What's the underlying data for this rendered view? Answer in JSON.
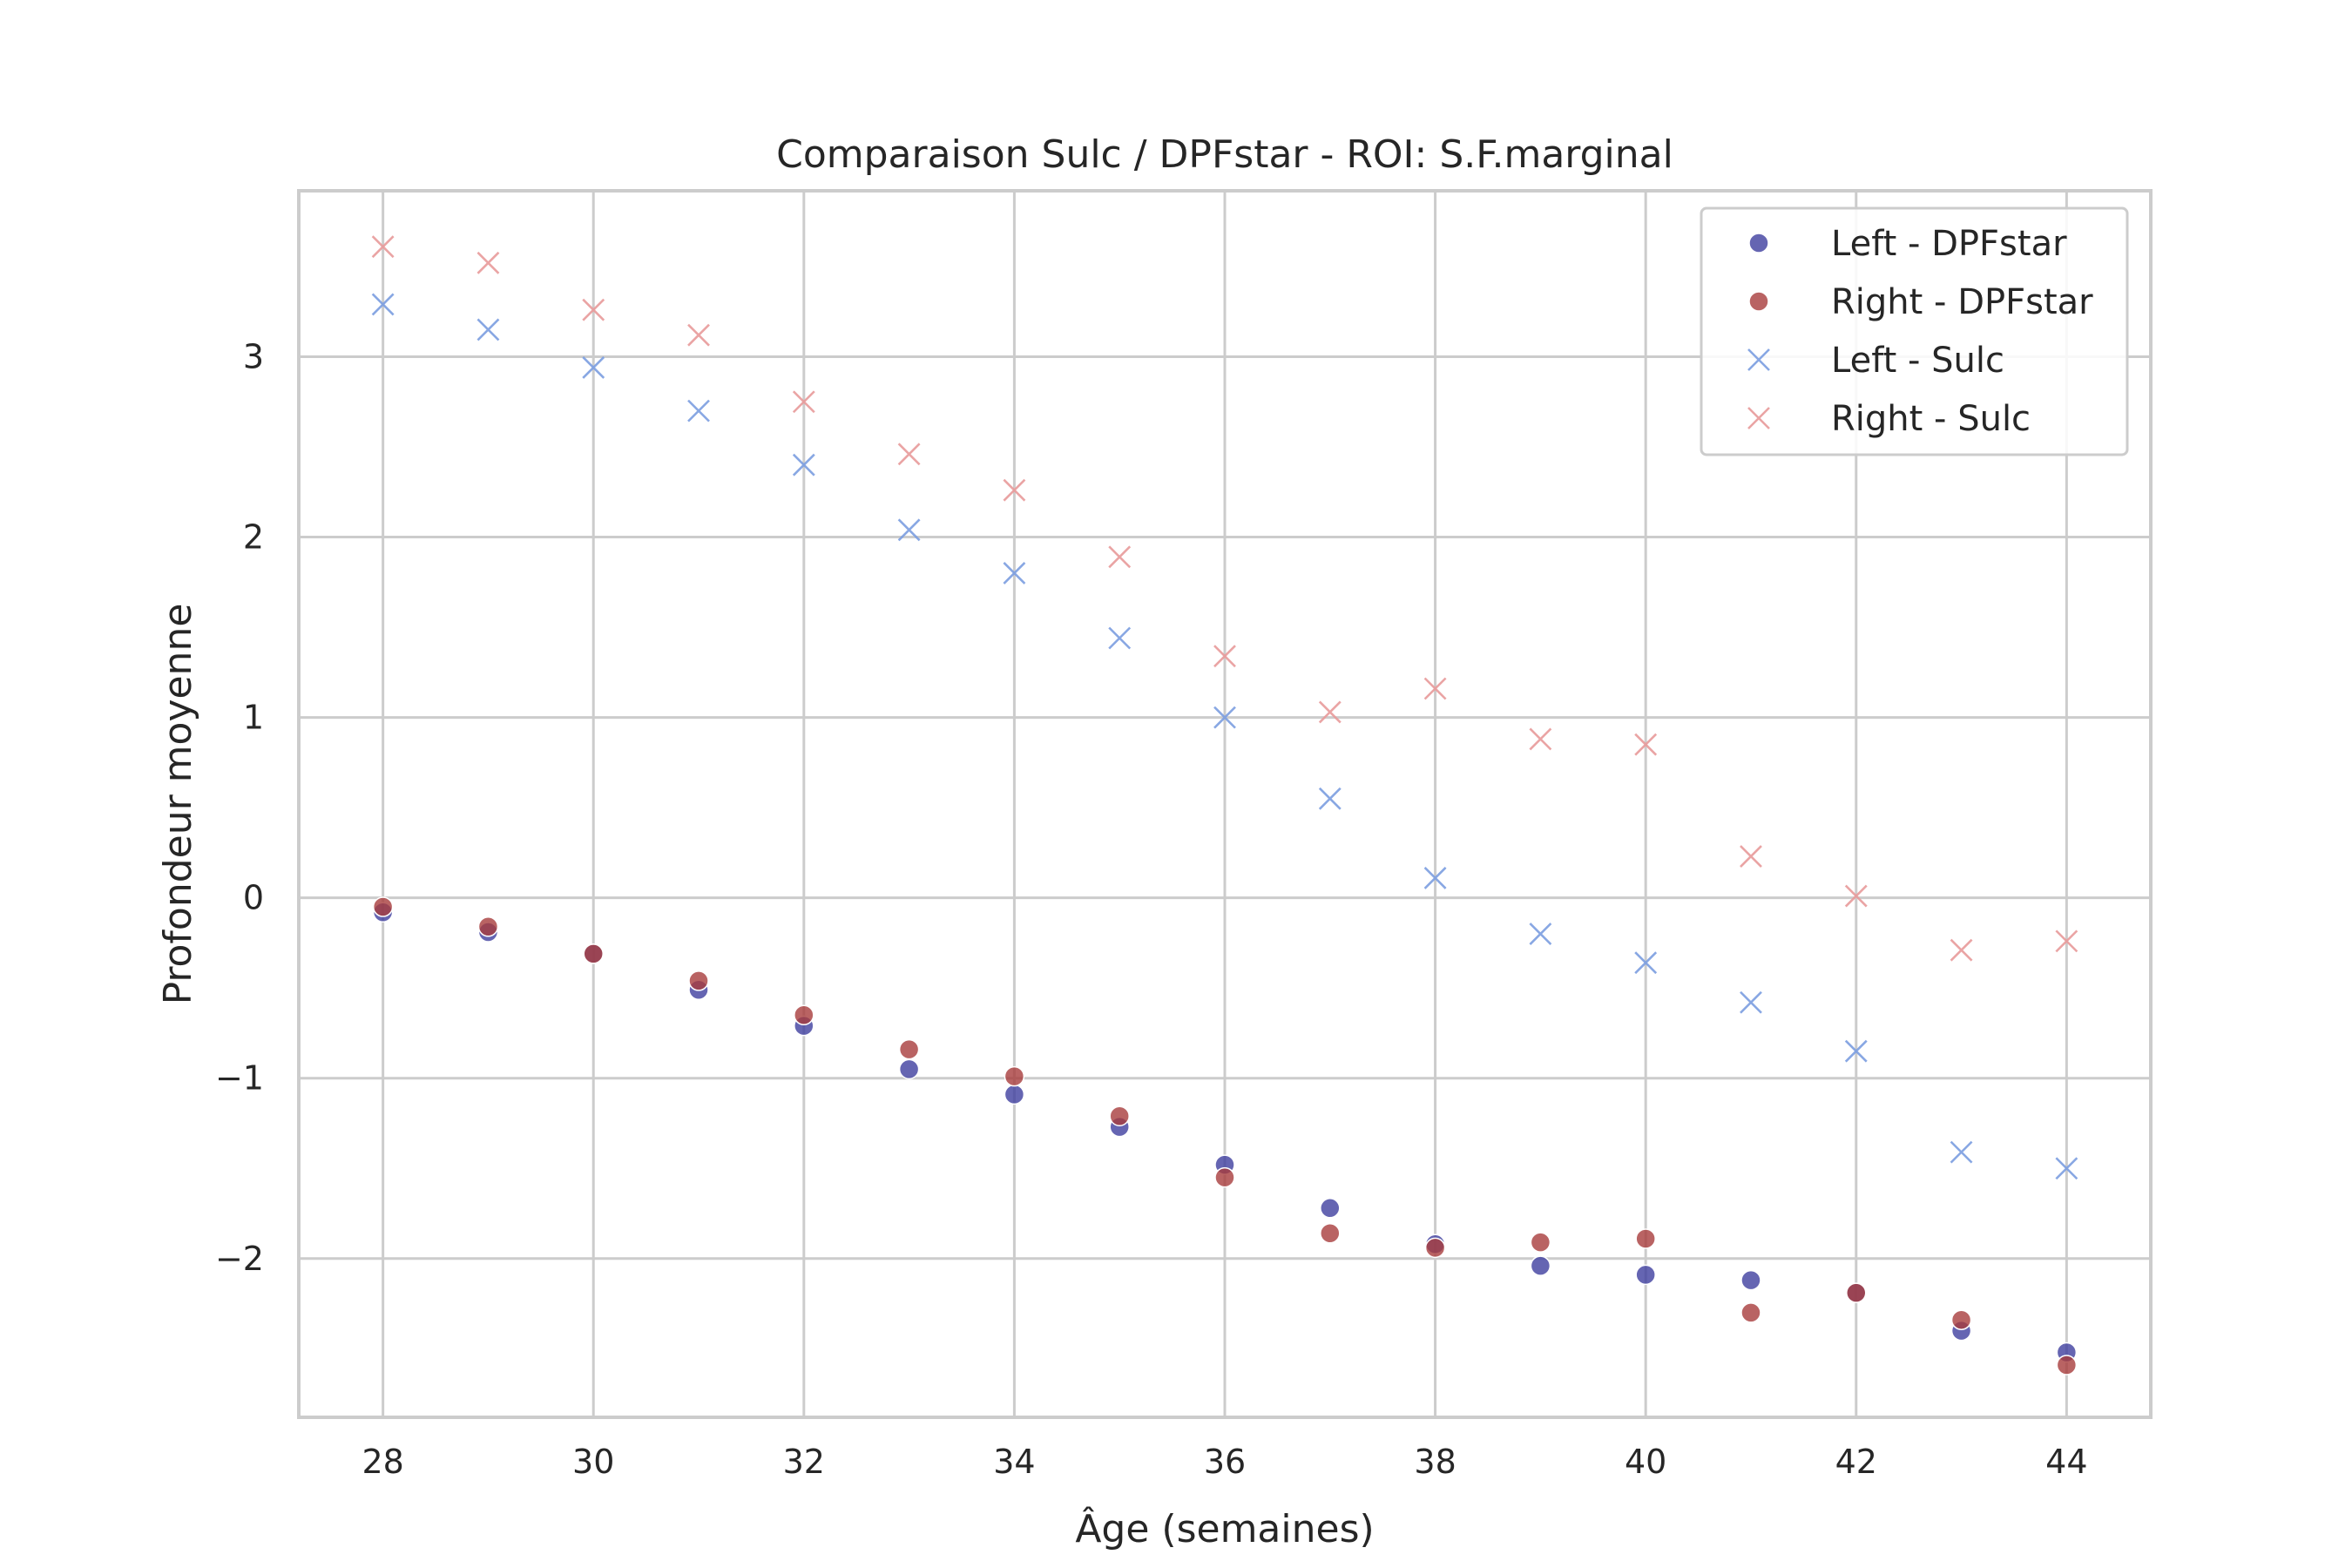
{
  "chart_data": {
    "type": "scatter",
    "title": "Comparaison Sulc / DPFstar - ROI: S.F.marginal",
    "xlabel": "Âge (semaines)",
    "ylabel": "Profondeur moyenne",
    "xlim": [
      27.2,
      44.8
    ],
    "ylim": [
      -2.88,
      3.92
    ],
    "xticks": [
      28,
      30,
      32,
      34,
      36,
      38,
      40,
      42,
      44
    ],
    "xtick_labels": [
      "28",
      "30",
      "32",
      "34",
      "36",
      "38",
      "40",
      "42",
      "44"
    ],
    "yticks": [
      -2,
      -1,
      0,
      1,
      2,
      3
    ],
    "ytick_labels": [
      "−2",
      "−1",
      "0",
      "1",
      "2",
      "3"
    ],
    "grid": true,
    "legend_position": "top-right",
    "x": [
      28,
      29,
      30,
      31,
      32,
      33,
      34,
      35,
      36,
      37,
      38,
      39,
      40,
      41,
      42,
      43,
      44
    ],
    "series": [
      {
        "name": "Left - DPFstar",
        "marker": "circle",
        "color": "#3f3f9f",
        "values": [
          -0.08,
          -0.19,
          -0.31,
          -0.51,
          -0.71,
          -0.95,
          -1.09,
          -1.27,
          -1.48,
          -1.72,
          -1.92,
          -2.04,
          -2.09,
          -2.12,
          -2.19,
          -2.4,
          -2.52
        ]
      },
      {
        "name": "Right - DPFstar",
        "marker": "circle",
        "color": "#a83c3c",
        "values": [
          -0.05,
          -0.16,
          -0.31,
          -0.46,
          -0.65,
          -0.84,
          -0.99,
          -1.21,
          -1.55,
          -1.86,
          -1.94,
          -1.91,
          -1.89,
          -2.3,
          -2.19,
          -2.34,
          -2.59
        ]
      },
      {
        "name": "Left - Sulc",
        "marker": "x",
        "color": "#7b9de0",
        "values": [
          3.29,
          3.15,
          2.94,
          2.7,
          2.4,
          2.04,
          1.8,
          1.44,
          1.0,
          0.55,
          0.11,
          -0.2,
          -0.36,
          -0.58,
          -0.85,
          -1.41,
          -1.5
        ]
      },
      {
        "name": "Right - Sulc",
        "marker": "x",
        "color": "#e89a9a",
        "values": [
          3.61,
          3.52,
          3.26,
          3.12,
          2.75,
          2.46,
          2.26,
          1.89,
          1.34,
          1.03,
          1.16,
          0.88,
          0.85,
          0.23,
          0.01,
          -0.29,
          -0.24
        ]
      }
    ]
  }
}
